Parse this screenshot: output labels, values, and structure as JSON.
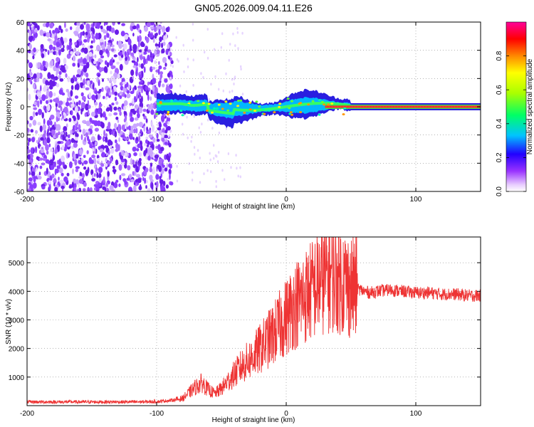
{
  "title": "GN05.2026.009.04.11.E26",
  "chart_data": [
    {
      "type": "heatmap",
      "xlabel": "Height of straight line (km)",
      "ylabel": "Frequency (Hz)",
      "xlim": [
        -200,
        150
      ],
      "ylim": [
        -60,
        60
      ],
      "xticks": [
        "-200",
        "-100",
        "0",
        "100"
      ],
      "yticks": [
        "60",
        "40",
        "20",
        "0",
        "-20",
        "-40",
        "-60"
      ],
      "colorbar": {
        "label": "Normalized spectral amplitude",
        "range": [
          0.0,
          1.0
        ],
        "ticks": [
          "0.0",
          "0.2",
          "0.4",
          "0.6",
          "0.8"
        ]
      },
      "features": {
        "noise_region_x": [
          -200,
          -88
        ],
        "signal_region_x": [
          -100,
          150
        ],
        "dominant_frequency_hz": 0
      },
      "grid": true
    },
    {
      "type": "line",
      "xlabel": "Height of straight line (km)",
      "ylabel": "SNR (10 * v/v)",
      "xlim": [
        -200,
        150
      ],
      "ylim": [
        0,
        5900
      ],
      "xticks": [
        "-200",
        "-100",
        "0",
        "100"
      ],
      "yticks": [
        "1000",
        "2000",
        "3000",
        "4000",
        "5000"
      ],
      "color": "#ee3333",
      "grid": true,
      "series": [
        {
          "x": [
            -200,
            -180,
            -160,
            -140,
            -120,
            -100,
            -90,
            -80,
            -75,
            -70,
            -65,
            -60,
            -55,
            -50,
            -45,
            -40,
            -35,
            -30,
            -25,
            -20,
            -15,
            -10,
            -5,
            0,
            5,
            10,
            15,
            20,
            25,
            30,
            35,
            40,
            45,
            50,
            55,
            60,
            65,
            70,
            80,
            90,
            100,
            110,
            120,
            130,
            140,
            150
          ],
          "values": [
            130,
            130,
            130,
            130,
            130,
            140,
            180,
            250,
            450,
            650,
            800,
            550,
            420,
            600,
            850,
            1100,
            1350,
            1550,
            1750,
            2000,
            2250,
            2500,
            2800,
            3100,
            3450,
            3650,
            3850,
            4050,
            4300,
            4500,
            4550,
            4500,
            4350,
            4150,
            4100,
            4000,
            3950,
            4000,
            4050,
            4000,
            3950,
            3950,
            3900,
            3900,
            3850,
            3850
          ]
        }
      ]
    }
  ]
}
